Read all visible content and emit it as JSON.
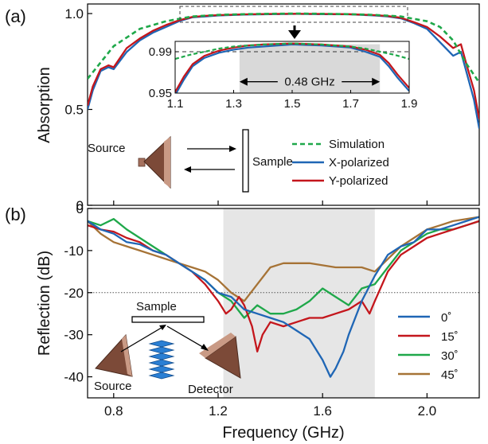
{
  "chart_data": [
    {
      "panel": "(a)",
      "type": "line",
      "ylabel": "Absorption",
      "xlim": [
        0.7,
        2.2
      ],
      "ylim": [
        0,
        1.05
      ],
      "y_ticks": [
        "0",
        "0.5",
        "1.0"
      ],
      "y_tick_values": [
        0,
        0.5,
        1.0
      ],
      "series": [
        {
          "name": "Simulation",
          "color": "#1fa84a",
          "style": "dashed",
          "x": [
            0.7,
            0.8,
            0.9,
            1.0,
            1.1,
            1.2,
            1.3,
            1.4,
            1.5,
            1.6,
            1.7,
            1.8,
            1.9,
            2.0,
            2.05,
            2.1,
            2.15,
            2.2
          ],
          "y": [
            0.66,
            0.83,
            0.92,
            0.96,
            0.985,
            0.993,
            0.997,
            0.999,
            1.0,
            0.999,
            0.997,
            0.993,
            0.985,
            0.96,
            0.93,
            0.86,
            0.74,
            0.64
          ]
        },
        {
          "name": "X-polarized",
          "color": "#1f66b5",
          "style": "solid",
          "x": [
            0.7,
            0.72,
            0.75,
            0.78,
            0.8,
            0.85,
            0.9,
            0.95,
            1.0,
            1.05,
            1.1,
            1.15,
            1.2,
            1.3,
            1.4,
            1.5,
            1.6,
            1.7,
            1.8,
            1.85,
            1.9,
            1.95,
            2.0,
            2.05,
            2.1,
            2.13,
            2.15,
            2.18,
            2.2
          ],
          "y": [
            0.5,
            0.6,
            0.7,
            0.72,
            0.71,
            0.8,
            0.86,
            0.9,
            0.93,
            0.96,
            0.98,
            0.985,
            0.99,
            0.995,
            0.997,
            0.998,
            0.997,
            0.996,
            0.99,
            0.985,
            0.975,
            0.95,
            0.92,
            0.85,
            0.78,
            0.8,
            0.7,
            0.55,
            0.4
          ]
        },
        {
          "name": "Y-polarized",
          "color": "#c4161c",
          "style": "solid",
          "x": [
            0.7,
            0.72,
            0.75,
            0.78,
            0.8,
            0.85,
            0.9,
            0.95,
            1.0,
            1.05,
            1.1,
            1.15,
            1.2,
            1.3,
            1.4,
            1.5,
            1.6,
            1.7,
            1.8,
            1.85,
            1.9,
            1.95,
            2.0,
            2.05,
            2.1,
            2.13,
            2.15,
            2.18,
            2.2
          ],
          "y": [
            0.52,
            0.62,
            0.71,
            0.73,
            0.72,
            0.82,
            0.87,
            0.91,
            0.94,
            0.965,
            0.982,
            0.988,
            0.992,
            0.996,
            0.998,
            0.999,
            0.998,
            0.997,
            0.992,
            0.987,
            0.978,
            0.955,
            0.93,
            0.88,
            0.82,
            0.84,
            0.74,
            0.6,
            0.45
          ]
        }
      ],
      "inset": {
        "xlim": [
          1.1,
          1.9
        ],
        "ylim": [
          0.95,
          1.0
        ],
        "x_ticks": [
          "1.1",
          "1.3",
          "1.5",
          "1.7",
          "1.9"
        ],
        "x_tick_values": [
          1.1,
          1.3,
          1.5,
          1.7,
          1.9
        ],
        "y_ticks": [
          "0.95",
          "0.99"
        ],
        "y_tick_values": [
          0.95,
          0.99
        ],
        "reference_line": 0.99,
        "shaded_range": [
          1.32,
          1.8
        ],
        "annotation": "0.48 GHz",
        "series": [
          {
            "color": "#1fa84a",
            "style": "dashed",
            "x": [
              1.1,
              1.15,
              1.2,
              1.25,
              1.3,
              1.4,
              1.5,
              1.6,
              1.7,
              1.75,
              1.8,
              1.85,
              1.9
            ],
            "y": [
              0.983,
              0.987,
              0.99,
              0.993,
              0.995,
              0.997,
              0.998,
              0.997,
              0.995,
              0.993,
              0.99,
              0.987,
              0.983
            ]
          },
          {
            "color": "#1f66b5",
            "style": "solid",
            "x": [
              1.1,
              1.13,
              1.16,
              1.2,
              1.25,
              1.3,
              1.35,
              1.4,
              1.5,
              1.6,
              1.7,
              1.75,
              1.8,
              1.83,
              1.86,
              1.9
            ],
            "y": [
              0.948,
              0.963,
              0.976,
              0.984,
              0.989,
              0.992,
              0.994,
              0.995,
              0.997,
              0.996,
              0.994,
              0.99,
              0.985,
              0.976,
              0.965,
              0.952
            ]
          },
          {
            "color": "#c4161c",
            "style": "solid",
            "x": [
              1.1,
              1.13,
              1.16,
              1.2,
              1.25,
              1.3,
              1.35,
              1.4,
              1.5,
              1.6,
              1.7,
              1.75,
              1.8,
              1.83,
              1.86,
              1.9
            ],
            "y": [
              0.951,
              0.966,
              0.978,
              0.986,
              0.991,
              0.994,
              0.996,
              0.997,
              0.998,
              0.997,
              0.995,
              0.992,
              0.987,
              0.979,
              0.968,
              0.955
            ]
          }
        ]
      },
      "schematic": {
        "source_label": "Source",
        "sample_label": "Sample"
      },
      "legend": [
        "Simulation",
        "X-polarized",
        "Y-polarized"
      ]
    },
    {
      "panel": "(b)",
      "type": "line",
      "xlabel": "Frequency (GHz)",
      "ylabel": "Reflection (dB)",
      "xlim": [
        0.7,
        2.2
      ],
      "ylim": [
        -45,
        0
      ],
      "x_ticks": [
        "0.8",
        "1.2",
        "1.6",
        "2.0"
      ],
      "x_tick_values": [
        0.8,
        1.2,
        1.6,
        2.0
      ],
      "y_ticks": [
        "0",
        "-10",
        "-20",
        "-30",
        "-40"
      ],
      "y_tick_values": [
        0,
        -10,
        -20,
        -30,
        -40
      ],
      "reference_line": -20,
      "shaded_range": [
        1.22,
        1.8
      ],
      "series": [
        {
          "name": "0˚",
          "color": "#1f66b5",
          "x": [
            0.7,
            0.75,
            0.8,
            0.85,
            0.9,
            0.95,
            1.0,
            1.05,
            1.1,
            1.15,
            1.2,
            1.25,
            1.3,
            1.35,
            1.4,
            1.45,
            1.5,
            1.55,
            1.6,
            1.63,
            1.65,
            1.68,
            1.7,
            1.75,
            1.8,
            1.85,
            1.9,
            1.95,
            2.0,
            2.05,
            2.1,
            2.15,
            2.2
          ],
          "y": [
            -3,
            -5,
            -6,
            -8,
            -8.5,
            -10,
            -11,
            -13,
            -15,
            -17,
            -20,
            -21,
            -24,
            -25,
            -26,
            -27,
            -29,
            -31,
            -36,
            -40,
            -38,
            -34,
            -30,
            -22,
            -16,
            -11,
            -9,
            -8,
            -5,
            -5,
            -4,
            -3,
            -2
          ]
        },
        {
          "name": "15˚",
          "color": "#c4161c",
          "x": [
            0.7,
            0.75,
            0.8,
            0.85,
            0.9,
            0.95,
            1.0,
            1.05,
            1.1,
            1.15,
            1.2,
            1.23,
            1.25,
            1.28,
            1.3,
            1.33,
            1.35,
            1.37,
            1.4,
            1.45,
            1.5,
            1.55,
            1.6,
            1.65,
            1.7,
            1.75,
            1.78,
            1.8,
            1.85,
            1.9,
            1.95,
            2.0,
            2.05,
            2.1,
            2.15,
            2.2
          ],
          "y": [
            -4,
            -5,
            -5.5,
            -7,
            -8,
            -10,
            -11,
            -13,
            -15,
            -18,
            -22,
            -25,
            -24,
            -21,
            -23,
            -28,
            -34,
            -30,
            -27,
            -28,
            -27,
            -26,
            -26,
            -25,
            -24,
            -22,
            -25,
            -22,
            -15,
            -11,
            -9,
            -7,
            -6,
            -5,
            -4,
            -3
          ]
        },
        {
          "name": "30˚",
          "color": "#1fa84a",
          "x": [
            0.7,
            0.75,
            0.8,
            0.85,
            0.9,
            0.95,
            1.0,
            1.05,
            1.1,
            1.15,
            1.2,
            1.25,
            1.3,
            1.35,
            1.4,
            1.45,
            1.5,
            1.55,
            1.6,
            1.65,
            1.7,
            1.75,
            1.8,
            1.85,
            1.9,
            1.95,
            2.0,
            2.05,
            2.1,
            2.15,
            2.2
          ],
          "y": [
            -3,
            -4,
            -2.5,
            -5,
            -7,
            -9,
            -11,
            -13,
            -15,
            -17,
            -20,
            -22,
            -26,
            -23,
            -25,
            -25,
            -24,
            -22,
            -19,
            -21,
            -23,
            -19,
            -18,
            -14,
            -10,
            -8,
            -6,
            -5,
            -5,
            -4,
            -3
          ]
        },
        {
          "name": "45˚",
          "color": "#a67336",
          "x": [
            0.7,
            0.75,
            0.8,
            0.85,
            0.9,
            0.95,
            1.0,
            1.05,
            1.1,
            1.15,
            1.2,
            1.25,
            1.3,
            1.35,
            1.4,
            1.45,
            1.5,
            1.55,
            1.6,
            1.65,
            1.7,
            1.75,
            1.8,
            1.85,
            1.9,
            1.95,
            2.0,
            2.05,
            2.1,
            2.15,
            2.2
          ],
          "y": [
            -3,
            -6,
            -8,
            -9,
            -10,
            -11,
            -12,
            -13,
            -14,
            -15,
            -17,
            -20,
            -22,
            -18,
            -14,
            -13,
            -13,
            -13,
            -13.5,
            -14,
            -14,
            -14,
            -15,
            -12,
            -9,
            -7,
            -5,
            -4,
            -3,
            -2.5,
            -2
          ]
        }
      ],
      "schematic": {
        "source_label": "Source",
        "sample_label": "Sample",
        "detector_label": "Detector"
      },
      "legend": [
        "0˚",
        "15˚",
        "30˚",
        "45˚"
      ]
    }
  ]
}
